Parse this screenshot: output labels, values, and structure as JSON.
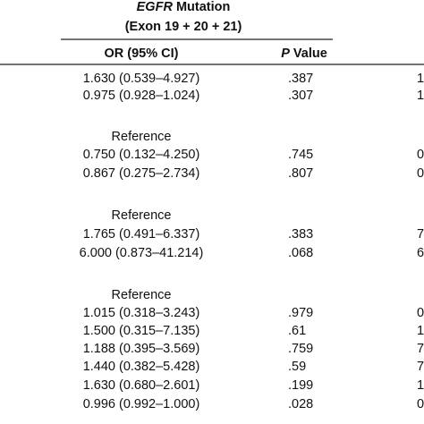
{
  "header": {
    "title": [
      "EGFR",
      "Mutation"
    ],
    "subtitle": "(Exon 19 + 20 + 21)"
  },
  "columns": {
    "or": "OR (95% CI)",
    "p": [
      "P",
      "Value"
    ]
  },
  "table": {
    "rows": [
      {
        "or": "1.630 (0.539–4.927)",
        "p": ".387",
        "edge": "1"
      },
      {
        "or": "0.975 (0.928–1.024)",
        "p": ".307",
        "edge": "1"
      },
      {
        "or": "Reference"
      },
      {
        "or": "0.750 (0.132–4.250)",
        "p": ".745",
        "edge": "0"
      },
      {
        "or": "0.867 (0.275–2.734)",
        "p": ".807",
        "edge": "0"
      },
      {
        "or": "Reference"
      },
      {
        "or": "1.765 (0.491–6.337)",
        "p": ".383",
        "edge": "7"
      },
      {
        "or": "6.000 (0.873–41.214)",
        "p": ".068",
        "edge": "6"
      },
      {
        "or": "Reference"
      },
      {
        "or": "1.015 (0.318–3.243)",
        "p": ".979",
        "edge": "0"
      },
      {
        "or": "1.500 (0.315–7.135)",
        "p": ".61",
        "edge": "1"
      },
      {
        "or": "1.188 (0.395–3.569)",
        "p": ".759",
        "edge": "7"
      },
      {
        "or": "1.440 (0.382–5.428)",
        "p": ".59",
        "edge": "7"
      },
      {
        "or": "1.630 (0.680–2.601)",
        "p": ".199",
        "edge": "1"
      },
      {
        "or": "0.996 (0.992–1.000)",
        "p": ".028",
        "edge": "0"
      }
    ]
  }
}
